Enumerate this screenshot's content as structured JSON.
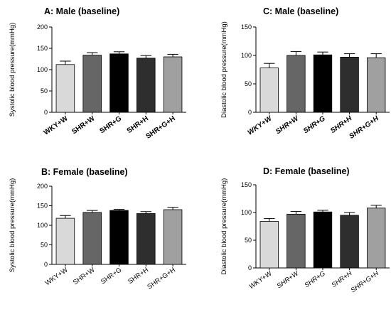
{
  "colors": [
    "#d9d9d9",
    "#666666",
    "#000000",
    "#2e2e2e",
    "#a0a0a0"
  ],
  "chart_data": [
    {
      "type": "bar",
      "title": "A: Male (baseline)",
      "ylabel": "Systolic blood pressure(mmHg)",
      "xlabel": "",
      "ylim": [
        0,
        200
      ],
      "yticks": [
        "0",
        "50",
        "100",
        "150",
        "200"
      ],
      "categories": [
        "WKY+W",
        "SHR+W",
        "SHR+G",
        "SHR+H",
        "SHR+G+H"
      ],
      "values": [
        112,
        134,
        137,
        127,
        130
      ],
      "errors": [
        8,
        6,
        5,
        6,
        6
      ],
      "label_style": "bold"
    },
    {
      "type": "bar",
      "title": "C: Male (baseline)",
      "ylabel": "Diastolic blood pressure(mmHg)",
      "xlabel": "",
      "ylim": [
        0,
        150
      ],
      "yticks": [
        "0",
        "50",
        "100",
        "150"
      ],
      "categories": [
        "WKY+W",
        "SHR+W",
        "SHR+G",
        "SHR+H",
        "SHR+G+H"
      ],
      "values": [
        78,
        100,
        101,
        97,
        96
      ],
      "errors": [
        8,
        7,
        5,
        6,
        7
      ],
      "label_style": "bold-italic"
    },
    {
      "type": "bar",
      "title": "B: Female (baseline)",
      "ylabel": "Systolic blood pressure(mmHg)",
      "xlabel": "",
      "ylim": [
        0,
        200
      ],
      "yticks": [
        "0",
        "50",
        "100",
        "150",
        "200"
      ],
      "categories": [
        "WKY+W",
        "SHR+W",
        "SHR+G",
        "SHR+H",
        "SHR+G+H"
      ],
      "values": [
        118,
        133,
        138,
        130,
        140
      ],
      "errors": [
        7,
        5,
        3,
        5,
        6
      ],
      "label_style": "regular"
    },
    {
      "type": "bar",
      "title": "D: Female (baseline)",
      "ylabel": "Diastolic blood pressure(mmHg)",
      "xlabel": "",
      "ylim": [
        0,
        150
      ],
      "yticks": [
        "0",
        "50",
        "100",
        "150"
      ],
      "categories": [
        "WKY+W",
        "SHR+W",
        "SHR+G",
        "SHR+H",
        "SHR+G+H"
      ],
      "values": [
        84,
        97,
        101,
        95,
        108
      ],
      "errors": [
        5,
        5,
        3,
        5,
        5
      ],
      "label_style": "italic"
    }
  ]
}
